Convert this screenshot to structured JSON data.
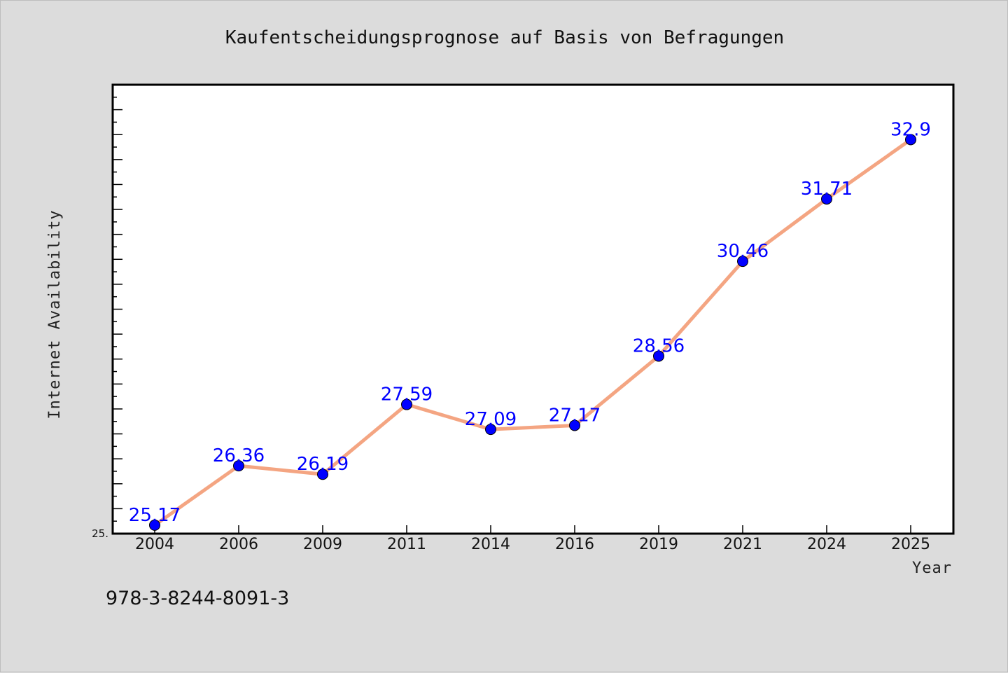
{
  "chart_data": {
    "type": "line",
    "title": "Kaufentscheidungsprognose auf Basis von Befragungen",
    "xlabel": "Year",
    "ylabel": "Internet Availability",
    "categories": [
      "2004",
      "2006",
      "2009",
      "2011",
      "2014",
      "2016",
      "2019",
      "2021",
      "2024",
      "2025"
    ],
    "series": [
      {
        "values": [
          25.17,
          26.36,
          26.19,
          27.59,
          27.09,
          27.17,
          28.56,
          30.46,
          31.71,
          32.9
        ],
        "labels": [
          "25.17",
          "26.36",
          "26.19",
          "27.59",
          "27.09",
          "27.17",
          "28.56",
          "30.46",
          "31.71",
          "32.9"
        ]
      }
    ],
    "ylim": [
      25.0,
      34.0
    ],
    "yticks_labeled": [
      "25."
    ],
    "grid": false,
    "legend": "none",
    "colors": {
      "line": "#f4a582",
      "marker": "#0000ff",
      "data_label": "#0000ff",
      "frame": "#000000",
      "background": "#dcdcdc",
      "plot_area": "#ffffff"
    }
  },
  "footer_text": "978-3-8244-8091-3"
}
